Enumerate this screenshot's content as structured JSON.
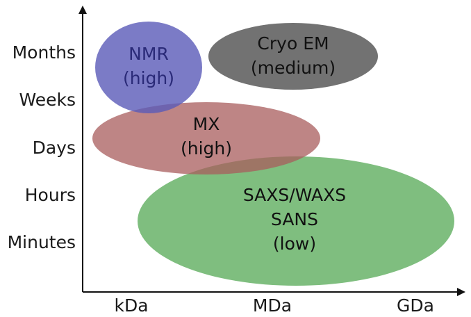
{
  "diagram": {
    "y_axis": {
      "ticks": [
        "Months",
        "Weeks",
        "Days",
        "Hours",
        "Minutes"
      ]
    },
    "x_axis": {
      "ticks": [
        "kDa",
        "MDa",
        "GDa"
      ]
    },
    "regions": [
      {
        "id": "saxs",
        "lines": [
          "SAXS/WAXS",
          "SANS",
          "(low)"
        ],
        "fill": "#5fae5f",
        "text_color": "#111111"
      },
      {
        "id": "mx",
        "lines": [
          "MX",
          "(high)"
        ],
        "fill": "#a85c5c",
        "text_color": "#111111"
      },
      {
        "id": "nmr",
        "lines": [
          "NMR",
          "(high)"
        ],
        "fill": "#5a5ab8",
        "text_color": "#2a2a78"
      },
      {
        "id": "cryoem",
        "lines": [
          "Cryo EM",
          "(medium)"
        ],
        "fill": "#6a6a6a",
        "text_color": "#111111"
      }
    ]
  }
}
